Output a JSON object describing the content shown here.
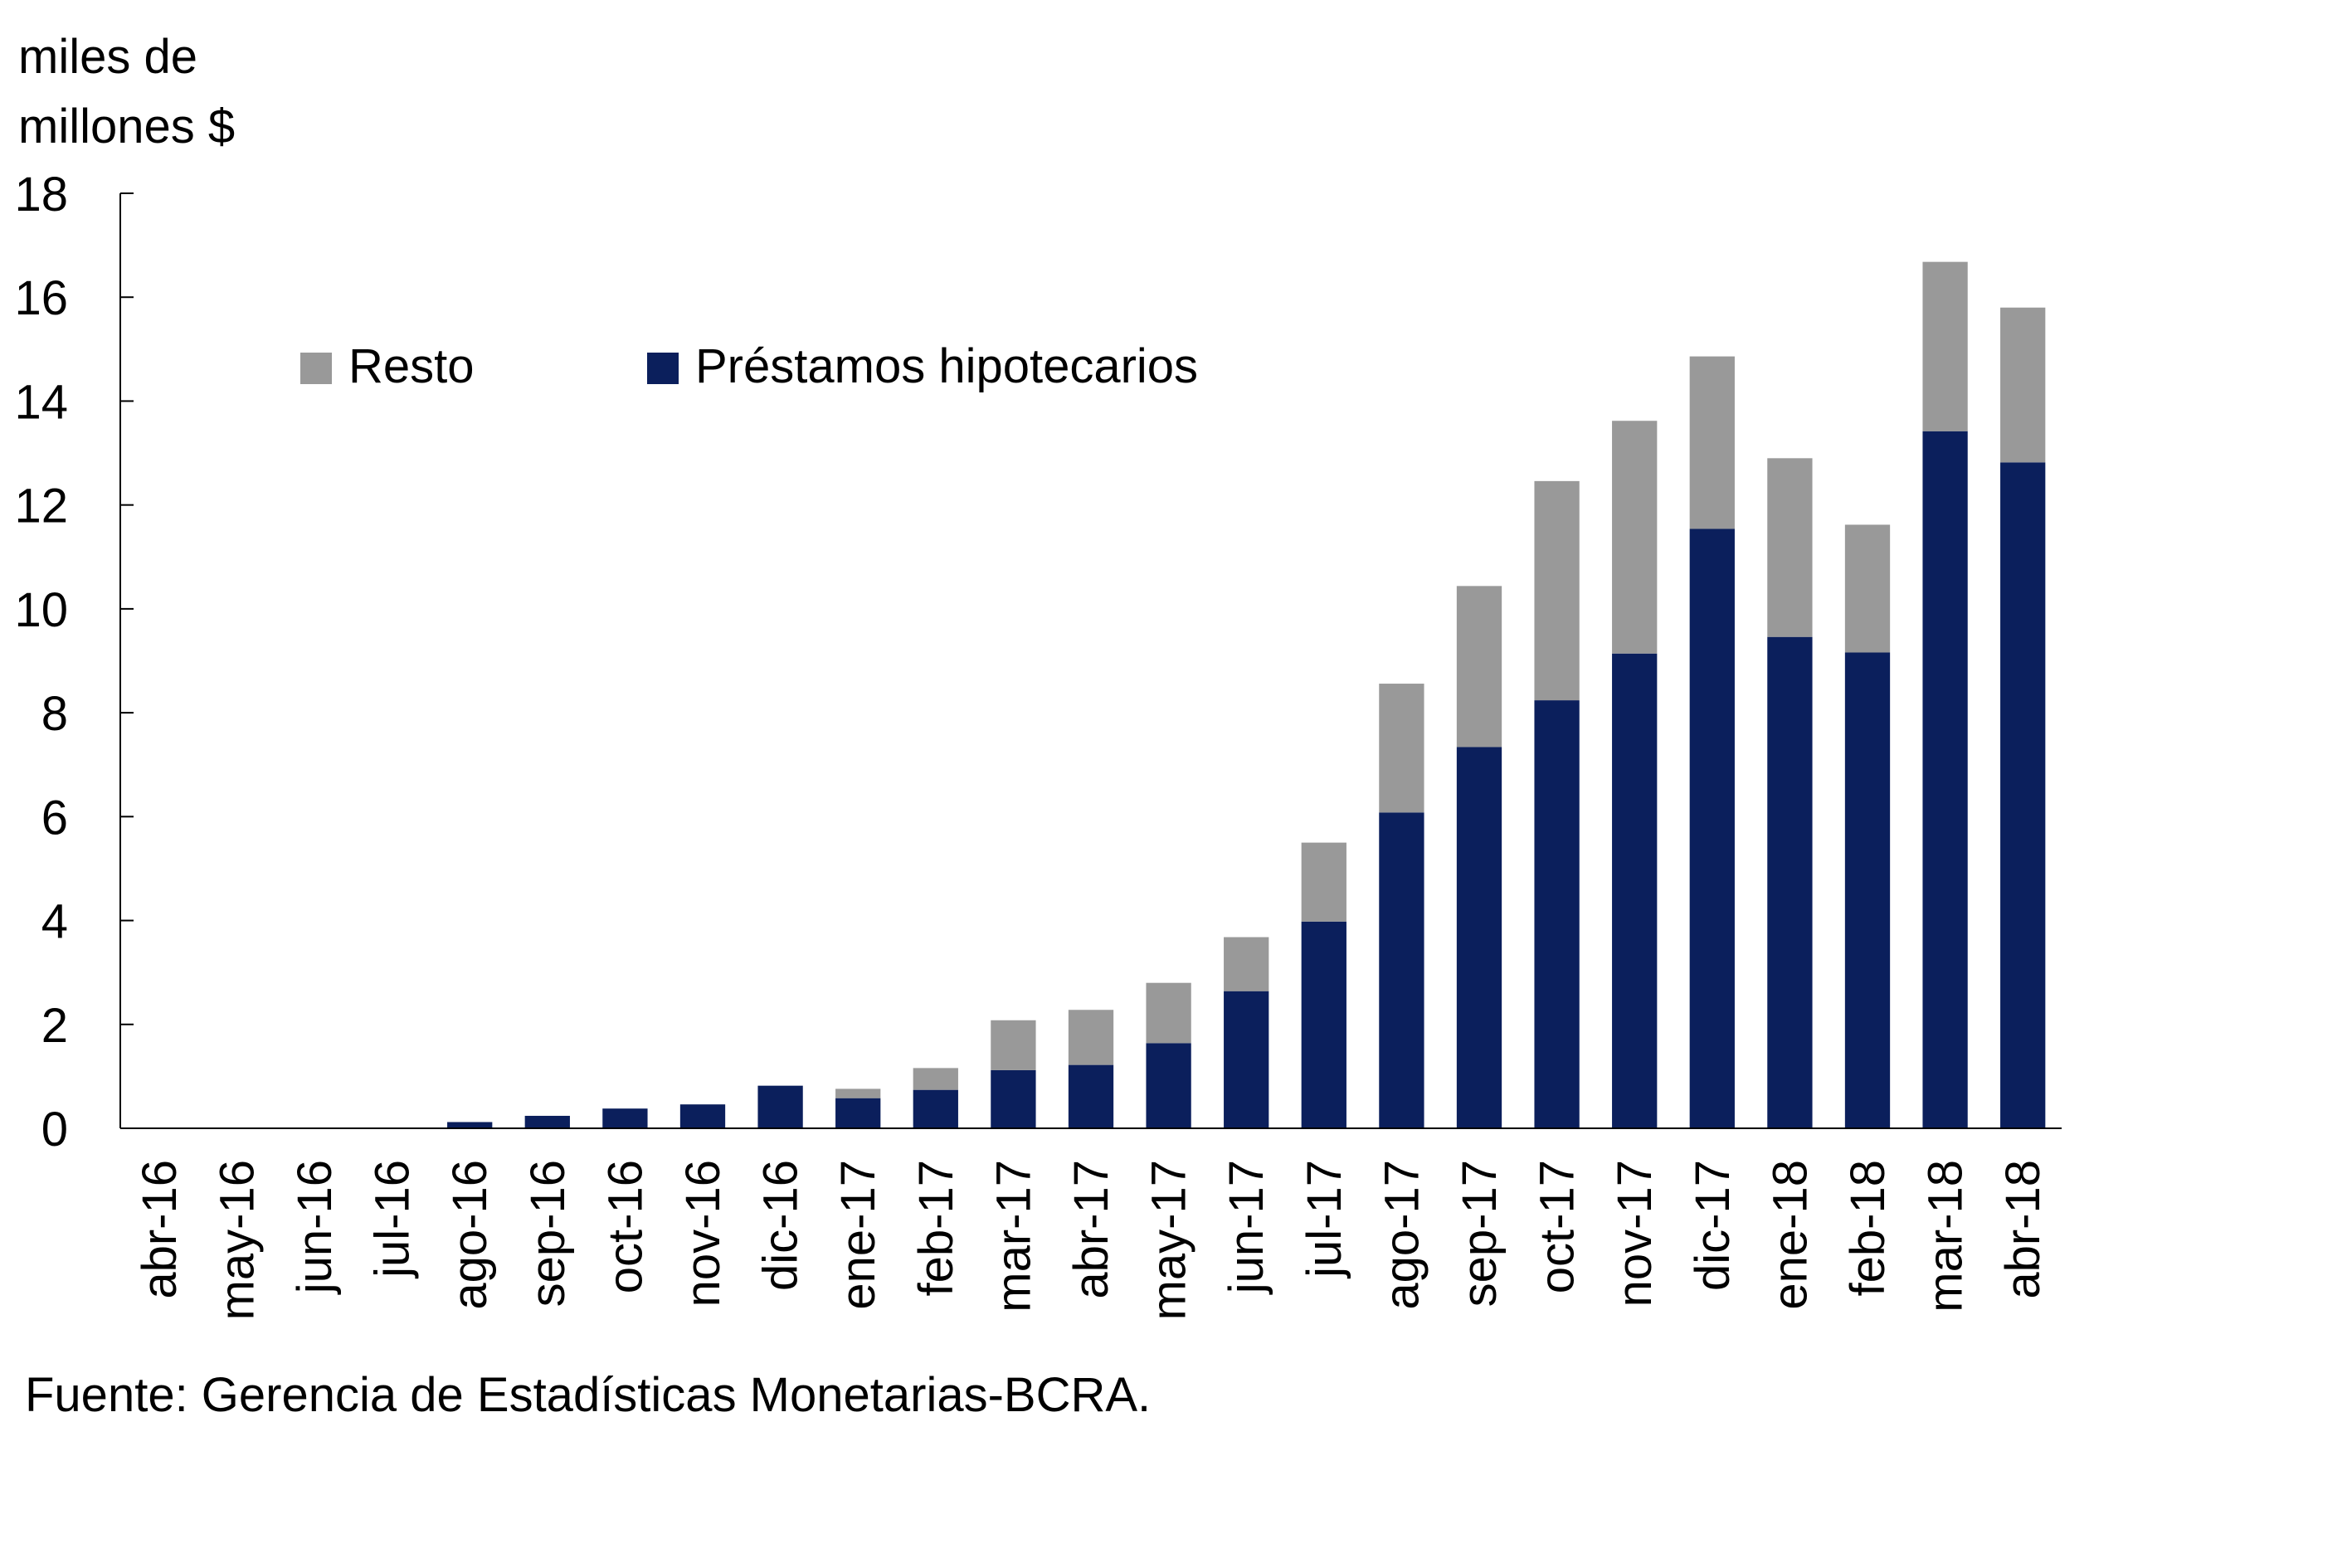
{
  "chart_data": {
    "type": "bar",
    "stacked": true,
    "ylabel_lines": [
      "miles de",
      "millones $"
    ],
    "ylim": [
      0,
      18
    ],
    "yticks": [
      "0",
      "2",
      "4",
      "6",
      "8",
      "10",
      "12",
      "14",
      "16",
      "18"
    ],
    "grid": false,
    "legend_position": "top-left",
    "categories": [
      "abr-16",
      "may-16",
      "jun-16",
      "jul-16",
      "ago-16",
      "sep-16",
      "oct-16",
      "nov-16",
      "dic-16",
      "ene-17",
      "feb-17",
      "mar-17",
      "abr-17",
      "may-17",
      "jun-17",
      "jul-17",
      "ago-17",
      "sep-17",
      "oct-17",
      "nov-17",
      "dic-17",
      "ene-18",
      "feb-18",
      "mar-18",
      "abr-18"
    ],
    "series": [
      {
        "name": "Préstamos hipotecarios",
        "color": "#0b1f5c",
        "values": [
          0,
          0,
          0,
          0,
          0.12,
          0.24,
          0.38,
          0.46,
          0.82,
          0.58,
          0.74,
          1.12,
          1.22,
          1.64,
          2.64,
          3.98,
          6.08,
          7.34,
          8.24,
          9.14,
          11.54,
          9.46,
          9.16,
          13.42,
          12.82
        ]
      },
      {
        "name": "Resto",
        "color": "#999999",
        "values": [
          0,
          0,
          0,
          0,
          0,
          0,
          0,
          0,
          0,
          0.18,
          0.42,
          0.96,
          1.06,
          1.16,
          1.04,
          1.52,
          2.48,
          3.1,
          4.22,
          4.48,
          3.32,
          3.44,
          2.46,
          3.26,
          2.98
        ]
      }
    ]
  },
  "source_note": "Fuente: Gerencia de Estadísticas Monetarias-BCRA."
}
